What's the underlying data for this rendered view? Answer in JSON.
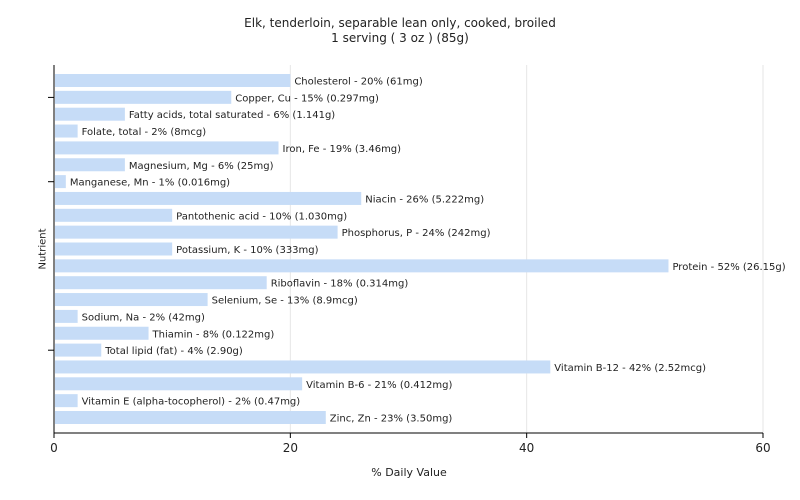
{
  "chart_data": {
    "type": "bar",
    "orientation": "horizontal",
    "title": "Elk, tenderloin, separable lean only, cooked, broiled",
    "subtitle": "1 serving ( 3 oz ) (85g)",
    "xlabel": "% Daily Value",
    "ylabel": "Nutrient",
    "xlim": [
      0,
      60
    ],
    "xticks": [
      "0",
      "20",
      "40",
      "60"
    ],
    "grid": "vertical",
    "bar_color": "#c6dcf7",
    "categories": [
      "Cholesterol",
      "Copper, Cu",
      "Fatty acids, total saturated",
      "Folate, total",
      "Iron, Fe",
      "Magnesium, Mg",
      "Manganese, Mn",
      "Niacin",
      "Pantothenic acid",
      "Phosphorus, P",
      "Potassium, K",
      "Protein",
      "Riboflavin",
      "Selenium, Se",
      "Sodium, Na",
      "Thiamin",
      "Total lipid (fat)",
      "Vitamin B-12",
      "Vitamin B-6",
      "Vitamin E (alpha-tocopherol)",
      "Zinc, Zn"
    ],
    "values": [
      20,
      15,
      6,
      2,
      19,
      6,
      1,
      26,
      10,
      24,
      10,
      52,
      18,
      13,
      2,
      8,
      4,
      42,
      21,
      2,
      23
    ],
    "labels": [
      "Cholesterol - 20% (61mg)",
      "Copper, Cu - 15% (0.297mg)",
      "Fatty acids, total saturated - 6% (1.141g)",
      "Folate, total - 2% (8mcg)",
      "Iron, Fe - 19% (3.46mg)",
      "Magnesium, Mg - 6% (25mg)",
      "Manganese, Mn - 1% (0.016mg)",
      "Niacin - 26% (5.222mg)",
      "Pantothenic acid - 10% (1.030mg)",
      "Phosphorus, P - 24% (242mg)",
      "Potassium, K - 10% (333mg)",
      "Protein - 52% (26.15g)",
      "Riboflavin - 18% (0.314mg)",
      "Selenium, Se - 13% (8.9mcg)",
      "Sodium, Na - 2% (42mg)",
      "Thiamin - 8% (0.122mg)",
      "Total lipid (fat) - 4% (2.90g)",
      "Vitamin B-12 - 42% (2.52mcg)",
      "Vitamin B-6 - 21% (0.412mg)",
      "Vitamin E (alpha-tocopherol) - 2% (0.47mg)",
      "Zinc, Zn - 23% (3.50mg)"
    ]
  }
}
